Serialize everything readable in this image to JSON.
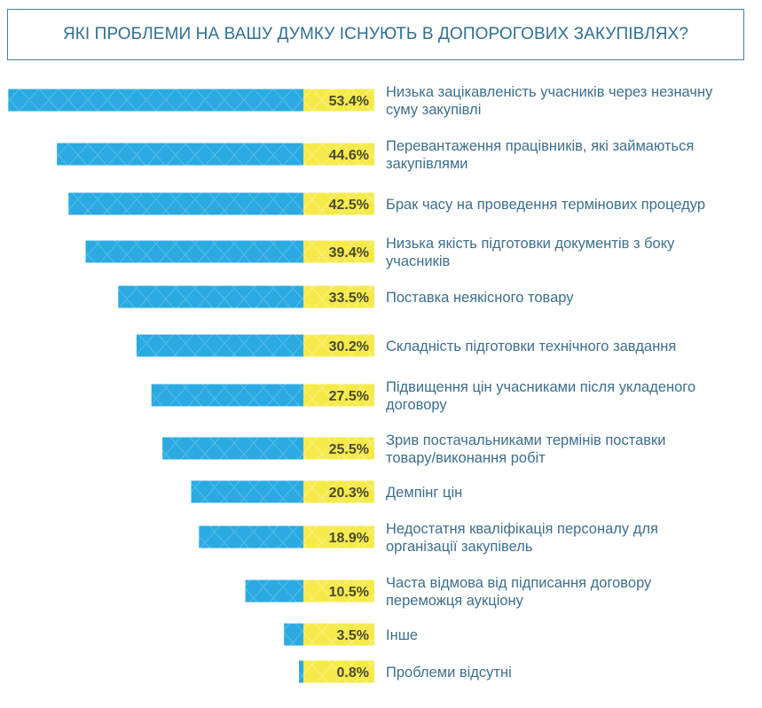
{
  "chart_data": {
    "type": "bar",
    "title": "ЯКІ ПРОБЛЕМИ НА ВАШУ ДУМКУ ІСНУЮТЬ В ДОПОРОГОВИХ ЗАКУПІВЛЯХ?",
    "orientation": "horizontal",
    "unit": "%",
    "categories": [
      [
        "Низька зацікавленість учасників через незначну",
        "суму закупівлі"
      ],
      [
        "Перевантаження працівників, які займаються",
        "закупівлями"
      ],
      [
        "Брак часу на проведення термінових процедур"
      ],
      [
        "Низька якість підготовки документів з боку",
        "учасників"
      ],
      [
        "Поставка неякісного товару"
      ],
      [
        "Складність підготовки технічного завдання"
      ],
      [
        "Підвищення цін учасниками після укладеного",
        "договору"
      ],
      [
        "Зрив постачальниками термінів поставки",
        "товару/виконання робіт"
      ],
      [
        "Демпінг цін"
      ],
      [
        "Недостатня кваліфікація персоналу для",
        "організації закупівель"
      ],
      [
        "Часта відмова від підписання договору",
        "переможця аукціону"
      ],
      [
        "Інше"
      ],
      [
        "Проблеми відсутні"
      ]
    ],
    "values": [
      53.4,
      44.6,
      42.5,
      39.4,
      33.5,
      30.2,
      27.5,
      25.5,
      20.3,
      18.9,
      10.5,
      3.5,
      0.8
    ],
    "value_labels": [
      "53.4%",
      "44.6%",
      "42.5%",
      "39.4%",
      "33.5%",
      "30.2%",
      "27.5%",
      "25.5%",
      "20.3%",
      "18.9%",
      "10.5%",
      "3.5%",
      "0.8%"
    ],
    "bar_color": "#2baae2",
    "value_box_color": "#f5ea4a",
    "label_color": "#3c6f8f",
    "title_color": "#2f6f95",
    "grid": false,
    "legend": "none"
  }
}
